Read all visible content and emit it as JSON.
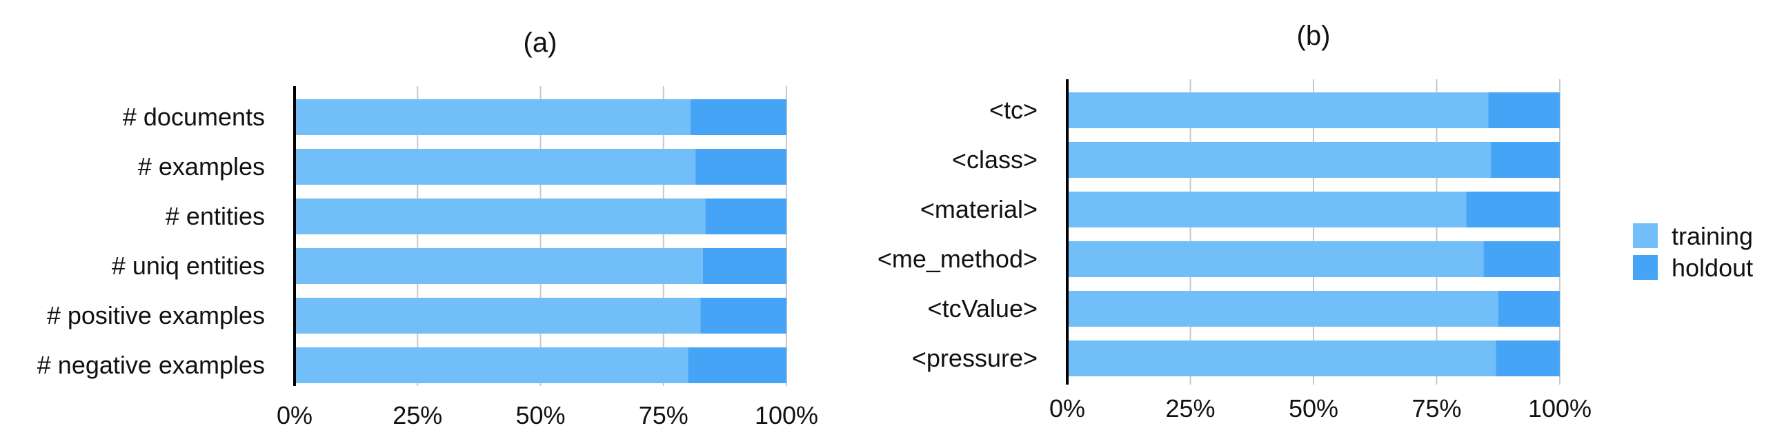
{
  "chart_data": [
    {
      "type": "bar",
      "orientation": "horizontal",
      "stacked": true,
      "title": "(a)",
      "categories": [
        "# documents",
        "# examples",
        "# entities",
        "# uniq entities",
        "# positive examples",
        "# negative examples"
      ],
      "series": [
        {
          "name": "training",
          "values": [
            80.5,
            81.5,
            83.5,
            83,
            82.5,
            80
          ]
        },
        {
          "name": "holdout",
          "values": [
            19.5,
            18.5,
            16.5,
            17,
            17.5,
            20
          ]
        }
      ],
      "xlim": [
        0,
        100
      ],
      "xticks": [
        "0%",
        "25%",
        "50%",
        "75%",
        "100%"
      ],
      "grid": true
    },
    {
      "type": "bar",
      "orientation": "horizontal",
      "stacked": true,
      "title": "(b)",
      "categories": [
        "<tc>",
        "<class>",
        "<material>",
        "<me_method>",
        "<tcValue>",
        "<pressure>"
      ],
      "series": [
        {
          "name": "training",
          "values": [
            85.5,
            86,
            81,
            84.5,
            87.5,
            87
          ]
        },
        {
          "name": "holdout",
          "values": [
            14.5,
            14,
            19,
            15.5,
            12.5,
            13
          ]
        }
      ],
      "xlim": [
        0,
        100
      ],
      "xticks": [
        "0%",
        "25%",
        "50%",
        "75%",
        "100%"
      ],
      "grid": true
    }
  ],
  "legend": {
    "placement": "right",
    "items": [
      {
        "label": "training",
        "color": "#72BEF8"
      },
      {
        "label": "holdout",
        "color": "#46A4F6"
      }
    ]
  },
  "colors": {
    "training": "#72BEF8",
    "holdout": "#46A4F6"
  }
}
